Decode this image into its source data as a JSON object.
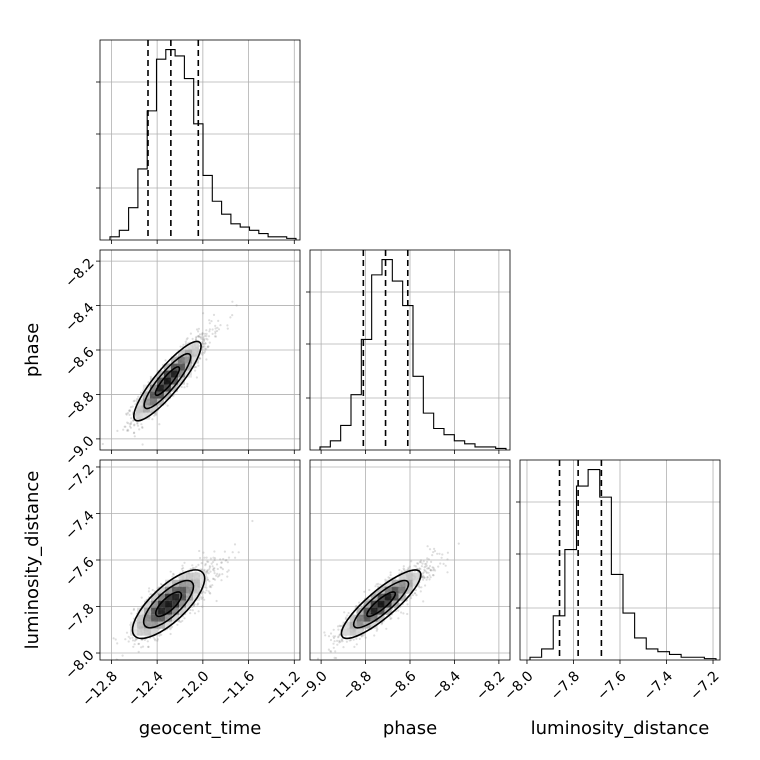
{
  "chart_data": {
    "type": "corner",
    "grid": true,
    "parameters": [
      {
        "name": "geocent_time",
        "label": "geocent_time",
        "range": [
          -12.9,
          -11.15
        ],
        "ticks": [
          -12.8,
          -12.4,
          -12.0,
          -11.6,
          -11.2
        ],
        "tick_labels": [
          "−12.8",
          "−12.4",
          "−12.0",
          "−11.6",
          "−11.2"
        ],
        "quantiles": [
          -12.48,
          -12.28,
          -12.04
        ],
        "histogram": [
          1,
          3,
          10,
          22,
          40,
          56,
          59,
          57,
          50,
          36,
          20,
          12,
          8,
          5,
          4,
          3,
          2,
          1,
          1,
          0.5
        ]
      },
      {
        "name": "phase",
        "label": "phase",
        "range": [
          -9.05,
          -8.15
        ],
        "ticks": [
          -9.0,
          -8.8,
          -8.6,
          -8.4,
          -8.2
        ],
        "tick_labels": [
          "−9.0",
          "−8.8",
          "−8.6",
          "−8.4",
          "−8.2"
        ],
        "quantiles": [
          -8.81,
          -8.71,
          -8.61
        ],
        "histogram": [
          1,
          3,
          8,
          18,
          36,
          57,
          62,
          55,
          47,
          24,
          12,
          7,
          5,
          3,
          2,
          1,
          1,
          0.5
        ]
      },
      {
        "name": "luminosity_distance",
        "label": "luminosity_distance",
        "range": [
          -8.03,
          -7.17
        ],
        "ticks": [
          -8.0,
          -7.8,
          -7.6,
          -7.4,
          -7.2
        ],
        "tick_labels": [
          "−8.0",
          "−7.8",
          "−7.6",
          "−7.4",
          "−7.2"
        ],
        "quantiles": [
          -7.86,
          -7.78,
          -7.68
        ],
        "histogram": [
          1,
          4,
          16,
          40,
          63,
          69,
          59,
          31,
          17,
          8,
          4,
          3,
          2,
          1,
          1,
          0.5
        ]
      }
    ],
    "pairs": [
      {
        "x": "geocent_time",
        "y": "phase",
        "mean": [
          -12.31,
          -8.74
        ],
        "sd": [
          0.14,
          0.085
        ],
        "corr": 0.88
      },
      {
        "x": "geocent_time",
        "y": "luminosity_distance",
        "mean": [
          -12.3,
          -7.79
        ],
        "sd": [
          0.15,
          0.07
        ],
        "corr": 0.75
      },
      {
        "x": "phase",
        "y": "luminosity_distance",
        "mean": [
          -8.73,
          -7.79
        ],
        "sd": [
          0.085,
          0.07
        ],
        "corr": 0.86
      }
    ]
  }
}
